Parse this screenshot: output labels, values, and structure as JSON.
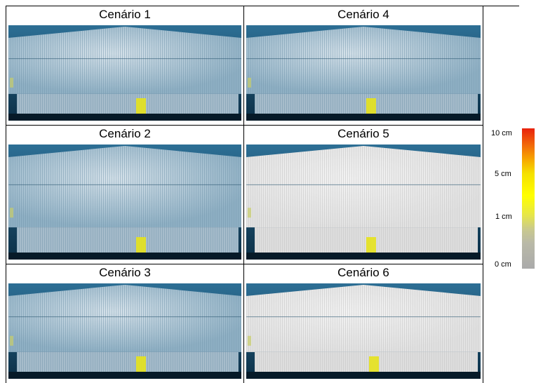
{
  "panels": [
    {
      "title": "Cenário 1"
    },
    {
      "title": "Cenário 4"
    },
    {
      "title": "Cenário 2"
    },
    {
      "title": "Cenário 5"
    },
    {
      "title": "Cenário 3"
    },
    {
      "title": "Cenário 6"
    }
  ],
  "legend": {
    "labels": [
      "10 cm",
      "5 cm",
      "1 cm",
      "0 cm"
    ]
  }
}
